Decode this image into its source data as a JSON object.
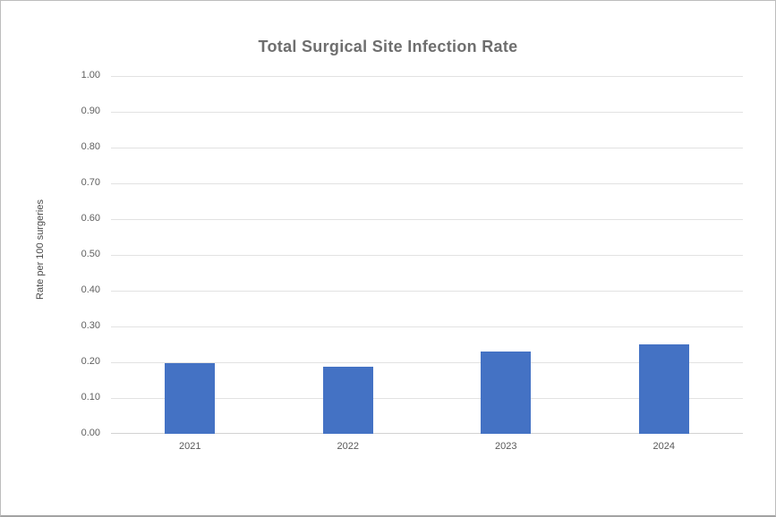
{
  "chart_data": {
    "type": "bar",
    "title": "Total Surgical Site Infection Rate",
    "xlabel": "",
    "ylabel": "Rate per 100 surgeries",
    "categories": [
      "2021",
      "2022",
      "2023",
      "2024"
    ],
    "values": [
      0.197,
      0.187,
      0.23,
      0.25
    ],
    "ylim": [
      0,
      1.0
    ],
    "ytick_labels": [
      "0.00",
      "0.10",
      "0.20",
      "0.30",
      "0.40",
      "0.50",
      "0.60",
      "0.70",
      "0.80",
      "0.90",
      "1.00"
    ],
    "grid": "horizontal",
    "legend": "none",
    "colors": {
      "bar": "#4472C4",
      "gridline": "#E2E2E2",
      "axis_line": "#D2D2D2",
      "title_text": "#6E6E6E",
      "tick_text": "#5F5F5F",
      "axis_title_text": "#484848",
      "background": "#FFFFFF",
      "canvas_border": "#BDBDBD"
    }
  }
}
